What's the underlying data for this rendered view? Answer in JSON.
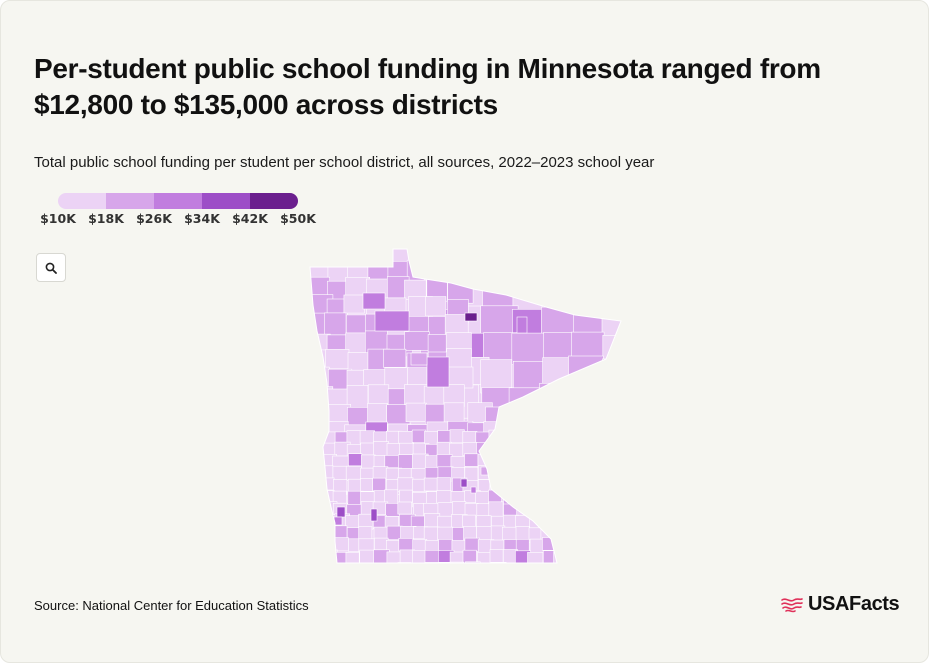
{
  "title": "Per-student public school funding in Minnesota ranged from $12,800 to $135,000 across districts",
  "subtitle": "Total public school funding per student per school district, all sources, 2022–2023 school year",
  "source": "Source: National Center for Education Statistics",
  "logo": {
    "text": "USAFacts",
    "icon": "usa-flag-icon",
    "color": "#e0315a"
  },
  "legend": {
    "labels": [
      "$10K",
      "$18K",
      "$26K",
      "$34K",
      "$42K",
      "$50K"
    ],
    "colors": [
      "#ecd3f5",
      "#d7a6ea",
      "#c17ddf",
      "#9d4ec7",
      "#6b1f8e"
    ]
  },
  "zoom_button": {
    "icon": "magnifier-icon"
  },
  "colors": {
    "background": "#f6f6f1",
    "district_border": "#ffffff"
  }
}
